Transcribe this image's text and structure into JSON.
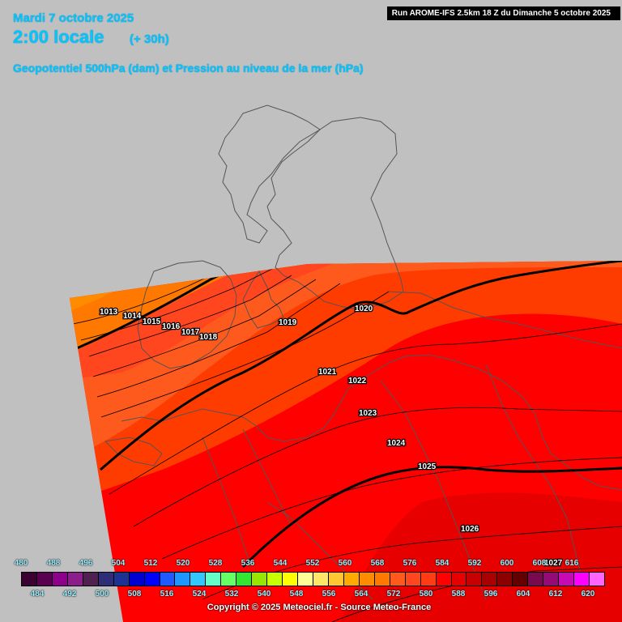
{
  "header": {
    "date": "Mardi 7 octobre 2025",
    "hour": "2:00 locale",
    "lead": "(+ 30h)",
    "subtitle": "Geopotentiel 500hPa (dam) et Pression au niveau de la mer (hPa)",
    "run": "Run AROME-IFS 2.5km 18 Z du Dimanche 5 octobre 2025"
  },
  "isobar_labels": [
    "1013",
    "1014",
    "1015",
    "1016",
    "1017",
    "1018",
    "1019",
    "1020",
    "1021",
    "1022",
    "1023",
    "1024",
    "1025",
    "1026",
    "1027"
  ],
  "legend": {
    "top_labels": [
      "480",
      "488",
      "496",
      "504",
      "512",
      "520",
      "528",
      "536",
      "544",
      "552",
      "560",
      "568",
      "576",
      "584",
      "592",
      "600",
      "608",
      "616"
    ],
    "bottom_labels": [
      "484",
      "492",
      "500",
      "508",
      "516",
      "524",
      "532",
      "540",
      "548",
      "556",
      "564",
      "572",
      "580",
      "588",
      "596",
      "604",
      "612",
      "620"
    ],
    "colors": [
      "#3c0033",
      "#5a0050",
      "#8c008c",
      "#8c1e8c",
      "#502050",
      "#2d2d78",
      "#1e3296",
      "#0000d2",
      "#0000ff",
      "#1e5aff",
      "#1e96ff",
      "#32c8ff",
      "#64ffc8",
      "#64ff64",
      "#32e632",
      "#96e600",
      "#c8ff00",
      "#ffff00",
      "#ffff96",
      "#ffe664",
      "#ffc832",
      "#ffaa00",
      "#ff8c00",
      "#ff7800",
      "#ff5a1e",
      "#ff461e",
      "#ff3c14",
      "#ff0000",
      "#e60000",
      "#c80000",
      "#aa0000",
      "#8c0000",
      "#640000",
      "#780a50",
      "#960a78",
      "#c80ab4",
      "#ff00ff",
      "#ff64ff"
    ]
  },
  "copyright": "Copyright © 2025 Meteociel.fr - Source Meteo-France"
}
